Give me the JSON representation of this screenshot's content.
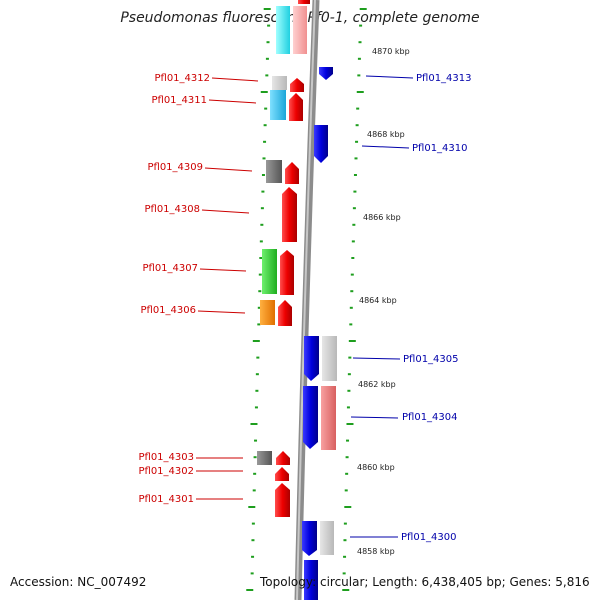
{
  "title": "Pseudomonas fluorescens Pf0-1, complete genome",
  "footer": {
    "accession": "Accession: NC_007492",
    "topology": "Topology: circular; Length: 6,438,405 bp; Genes: 5,816"
  },
  "colors": {
    "backbone": "#8c8c8c",
    "tick": "#1e9e1e",
    "forward_label": "#cc0000",
    "reverse_label": "#0000aa"
  },
  "kbp_labels": [
    "4870 kbp",
    "4868 kbp",
    "4866 kbp",
    "4864 kbp",
    "4862 kbp",
    "4860 kbp",
    "4858 kbp"
  ],
  "left_genes": [
    "Pfl01_4312",
    "Pfl01_4311",
    "Pfl01_4309",
    "Pfl01_4308",
    "Pfl01_4307",
    "Pfl01_4306",
    "Pfl01_4303",
    "Pfl01_4302",
    "Pfl01_4301"
  ],
  "right_genes": [
    "Pfl01_4313",
    "Pfl01_4310",
    "Pfl01_4305",
    "Pfl01_4304",
    "Pfl01_4300"
  ]
}
